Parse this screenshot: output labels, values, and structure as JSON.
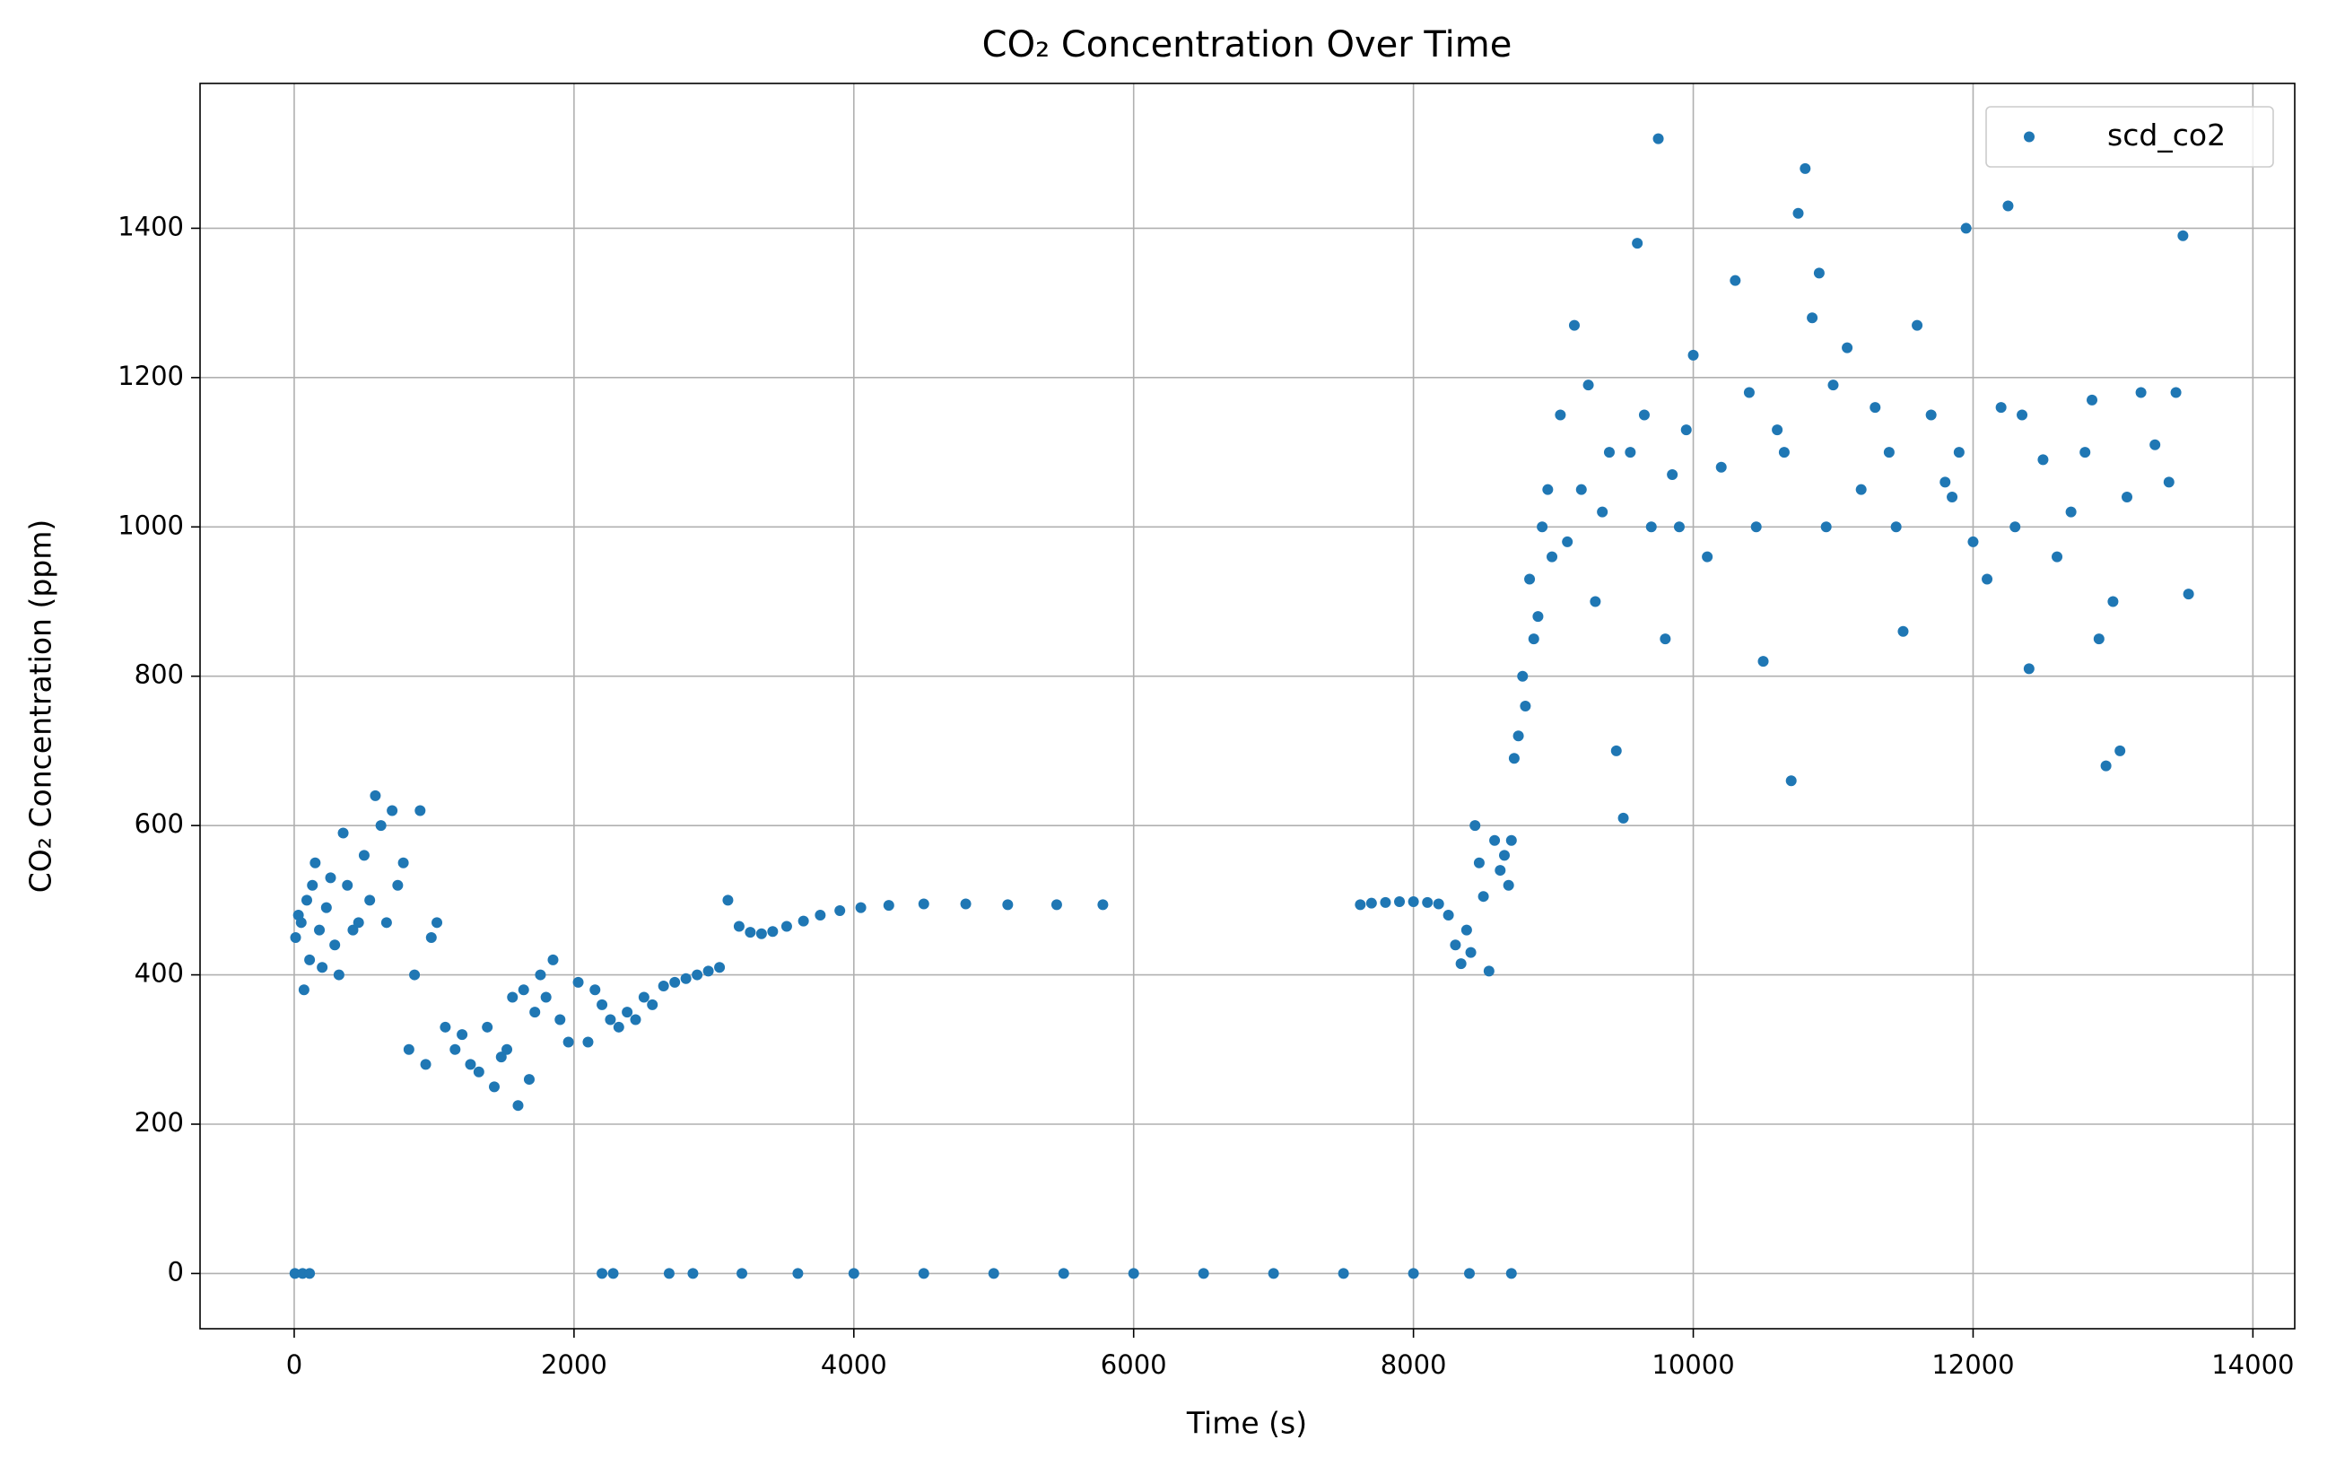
{
  "chart_data": {
    "type": "scatter",
    "title": "CO₂ Concentration Over Time",
    "xlabel": "Time (s)",
    "ylabel": "CO₂ Concentration (ppm)",
    "xlim": [
      -673,
      14299
    ],
    "ylim": [
      -74,
      1594
    ],
    "xticks": [
      0,
      2000,
      4000,
      6000,
      8000,
      10000,
      12000,
      14000
    ],
    "yticks": [
      0,
      200,
      400,
      600,
      800,
      1000,
      1200,
      1400
    ],
    "grid": true,
    "legend": "upper right",
    "series": [
      {
        "name": "scd_co2",
        "color": "#1f77b4",
        "x": [
          10,
          30,
          50,
          70,
          90,
          110,
          130,
          150,
          180,
          200,
          230,
          260,
          290,
          320,
          350,
          380,
          420,
          460,
          500,
          540,
          580,
          620,
          660,
          700,
          740,
          780,
          820,
          860,
          900,
          940,
          980,
          1020,
          1080,
          1150,
          1200,
          1260,
          1320,
          1380,
          1430,
          1480,
          1520,
          1560,
          1600,
          1640,
          1680,
          1720,
          1760,
          1800,
          1850,
          1900,
          1960,
          2030,
          2100,
          2150,
          2200,
          2260,
          2320,
          2380,
          2440,
          2500,
          2560,
          2640,
          2720,
          2800,
          2880,
          2960,
          3040,
          3100,
          3180,
          3260,
          3340,
          3420,
          3520,
          3640,
          3760,
          3900,
          4050,
          4250,
          4500,
          4800,
          5100,
          5450,
          5780,
          7620,
          7700,
          7800,
          7900,
          8000,
          8100,
          8180,
          8250,
          8300,
          8340,
          8380,
          8410,
          8440,
          8470,
          8500,
          8540,
          8580,
          8620,
          8650,
          8680,
          8700,
          5,
          60,
          110,
          2200,
          2280,
          2680,
          2850,
          3200,
          3600,
          4000,
          4500,
          5000,
          5500,
          6000,
          6500,
          7000,
          7500,
          8000,
          8400,
          8700,
          8720,
          8750,
          8780,
          8800,
          8830,
          8860,
          8890,
          8920,
          8960,
          8990,
          9050,
          9100,
          9150,
          9200,
          9250,
          9300,
          9350,
          9400,
          9450,
          9500,
          9550,
          9600,
          9650,
          9700,
          9750,
          9800,
          9850,
          9900,
          9950,
          10000,
          10100,
          10200,
          10300,
          10400,
          10450,
          10500,
          10600,
          10650,
          10700,
          10750,
          10800,
          10850,
          10900,
          10950,
          11000,
          11100,
          11200,
          11300,
          11400,
          11450,
          11500,
          11600,
          11700,
          11800,
          11850,
          11900,
          11950,
          12000,
          12100,
          12200,
          12250,
          12300,
          12350,
          12400,
          12500,
          12600,
          12700,
          12800,
          12850,
          12900,
          12950,
          13000,
          13050,
          13100,
          13200,
          13300,
          13400,
          13450,
          13500,
          13540
        ],
        "values": [
          450,
          480,
          470,
          380,
          500,
          420,
          520,
          550,
          460,
          410,
          490,
          530,
          440,
          400,
          590,
          520,
          460,
          470,
          560,
          500,
          640,
          600,
          470,
          620,
          520,
          550,
          300,
          400,
          620,
          280,
          450,
          470,
          330,
          300,
          320,
          280,
          270,
          330,
          250,
          290,
          300,
          370,
          225,
          380,
          260,
          350,
          400,
          370,
          420,
          340,
          310,
          390,
          310,
          380,
          360,
          340,
          330,
          350,
          340,
          370,
          360,
          385,
          390,
          395,
          400,
          405,
          410,
          500,
          465,
          457,
          455,
          458,
          465,
          472,
          480,
          486,
          490,
          493,
          495,
          495,
          494,
          494,
          494,
          494,
          496,
          497,
          498,
          498,
          497,
          495,
          480,
          440,
          415,
          460,
          430,
          600,
          550,
          505,
          405,
          580,
          540,
          560,
          520,
          580,
          0,
          0,
          0,
          0,
          0,
          0,
          0,
          0,
          0,
          0,
          0,
          0,
          0,
          0,
          0,
          0,
          0,
          0,
          0,
          0,
          690,
          720,
          800,
          760,
          930,
          850,
          880,
          1000,
          1050,
          960,
          1150,
          980,
          1270,
          1050,
          1190,
          900,
          1020,
          1100,
          700,
          610,
          1100,
          1380,
          1150,
          1000,
          1520,
          850,
          1070,
          1000,
          1130,
          1230,
          960,
          1080,
          1330,
          1180,
          1000,
          820,
          1130,
          1100,
          660,
          1420,
          1480,
          1280,
          1340,
          1000,
          1190,
          1240,
          1050,
          1160,
          1100,
          1000,
          860,
          1270,
          1150,
          1060,
          1040,
          1100,
          1400,
          980,
          930,
          1160,
          1430,
          1000,
          1150,
          810,
          1090,
          960,
          1020,
          1100,
          1170,
          850,
          680,
          900,
          700,
          1040,
          1180,
          1110,
          1060,
          1180,
          1390,
          910
        ]
      }
    ]
  }
}
